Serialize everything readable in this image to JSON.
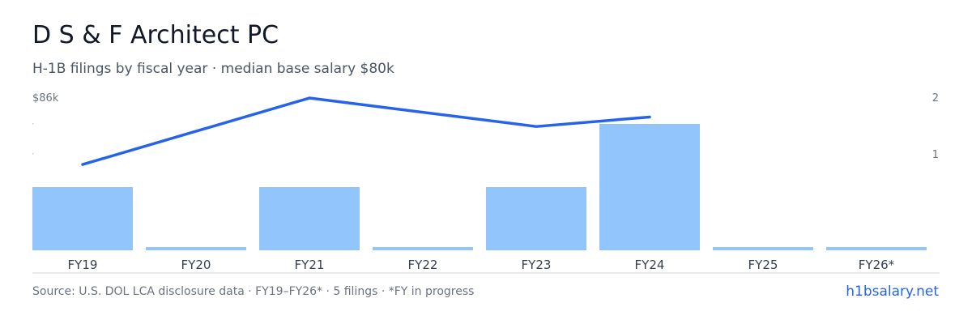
{
  "header": {
    "title": "D S & F Architect PC",
    "subtitle": "H-1B filings by fiscal year · median base salary $80k"
  },
  "footer": {
    "source": "Source: U.S. DOL LCA disclosure data · FY19–FY26* · 5 filings · *FY in progress",
    "brand": "h1bsalary.net"
  },
  "colors": {
    "bar": "#93c5fd",
    "line": "#2563eb",
    "axis": "#d1d5db",
    "tick_text": "#6b7280",
    "category_text": "#374151"
  },
  "chart_data": {
    "type": "bar",
    "title": "D S & F Architect PC",
    "subtitle": "H-1B filings by fiscal year · median base salary $80k",
    "categories": [
      "FY19",
      "FY20",
      "FY21",
      "FY22",
      "FY23",
      "FY24",
      "FY25",
      "FY26*"
    ],
    "series": [
      {
        "type": "bar",
        "axis": "right",
        "values": [
          1,
          0,
          1,
          0,
          1,
          2,
          0,
          0
        ]
      },
      {
        "type": "line",
        "axis": "left",
        "values": [
          79,
          null,
          86,
          null,
          83,
          84,
          null,
          null
        ]
      }
    ],
    "y_right": {
      "ticks": [
        "1",
        "2"
      ],
      "range": [
        0,
        2
      ]
    },
    "y_left": {
      "ticks": [
        "$86k"
      ],
      "range": [
        75,
        86
      ]
    },
    "grid": false
  }
}
